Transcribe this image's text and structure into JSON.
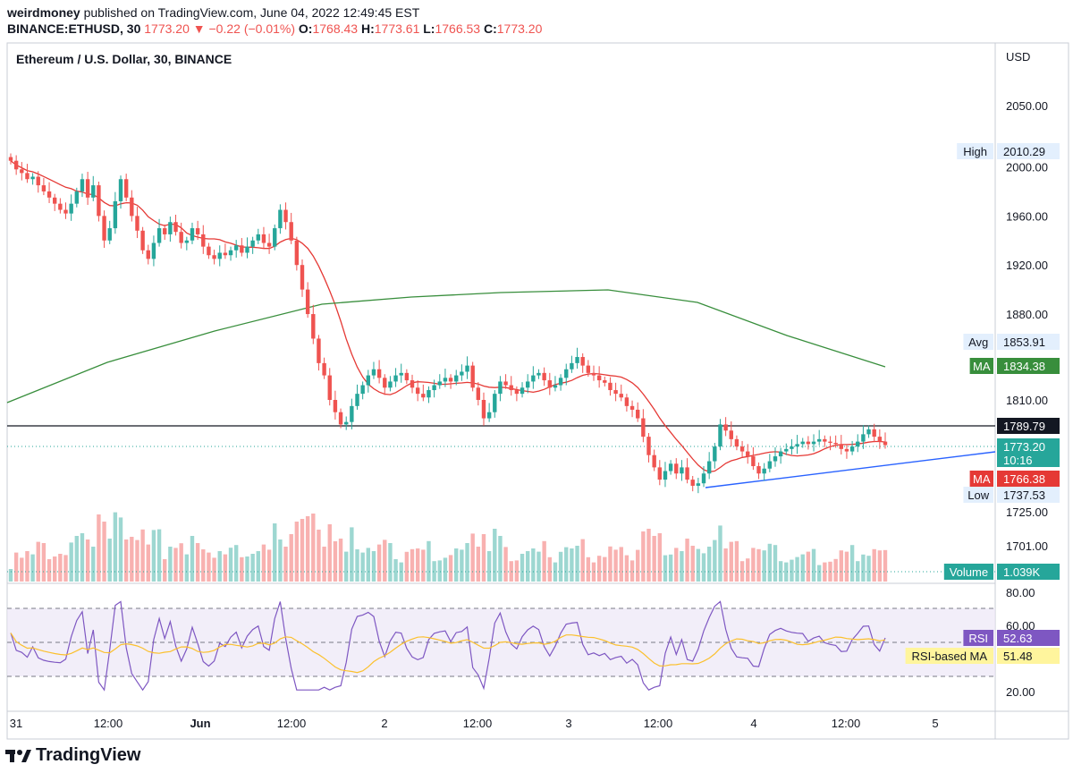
{
  "header": {
    "line1_user": "weirdmoney",
    "line1_rest": " published on TradingView.com, June 04, 2022 12:49:45 EST",
    "symbol": "BINANCE:ETHUSD, 30",
    "last": "1773.20",
    "change": "−0.22 (−0.01%)",
    "o_label": "O:",
    "o": "1768.43",
    "h_label": "H:",
    "h": "1773.61",
    "l_label": "L:",
    "l": "1766.53",
    "c_label": "C:",
    "c": "1773.20"
  },
  "chart_title": "Ethereum / U.S. Dollar, 30, BINANCE",
  "currency": "USD",
  "price_axis_ticks": [
    "2050.00",
    "2000.00",
    "1960.00",
    "1920.00",
    "1880.00",
    "1810.00",
    "1725.00",
    "1701.00"
  ],
  "rsi_axis_ticks": [
    "80.00",
    "60.00",
    "20.00"
  ],
  "time_axis_ticks": [
    "31",
    "12:00",
    "Jun",
    "12:00",
    "2",
    "12:00",
    "3",
    "12:00",
    "4",
    "12:00",
    "5"
  ],
  "labels": {
    "high": {
      "name": "High",
      "value": "2010.29"
    },
    "avg": {
      "name": "Avg",
      "value": "1853.91"
    },
    "ma200": {
      "name": "MA",
      "value": "1834.38"
    },
    "hline": {
      "value": "1789.79"
    },
    "last": {
      "value": "1773.20",
      "countdown": "10:16"
    },
    "ma50": {
      "name": "MA",
      "value": "1766.38"
    },
    "low": {
      "name": "Low",
      "value": "1737.53"
    },
    "volume": {
      "name": "Volume",
      "value": "1.039K"
    },
    "rsi": {
      "name": "RSI",
      "value": "52.63"
    },
    "rsi_ma": {
      "name": "RSI-based MA",
      "value": "51.48"
    }
  },
  "colors": {
    "up": "#26a69a",
    "down": "#ef5350",
    "ma_short": "#e53935",
    "ma_long": "#388e3c",
    "trendline": "#2962ff",
    "rsi": "#7e57c2",
    "rsi_ma": "#fbc02d",
    "high_low_bg": "#e3effd"
  },
  "branding": "TradingView",
  "chart_data": {
    "type": "candlestick",
    "title": "Ethereum / U.S. Dollar, 30, BINANCE",
    "ylabel": "USD",
    "ylim": [
      1690,
      2075
    ],
    "x_range": [
      "May 31",
      "Jun 5"
    ],
    "close": [
      2005,
      1998,
      1995,
      1990,
      1992,
      1985,
      1980,
      1975,
      1970,
      1965,
      1962,
      1970,
      1980,
      1990,
      1975,
      1985,
      1960,
      1940,
      1950,
      1972,
      1990,
      1975,
      1960,
      1948,
      1932,
      1925,
      1938,
      1950,
      1945,
      1955,
      1947,
      1938,
      1940,
      1950,
      1945,
      1935,
      1928,
      1925,
      1930,
      1928,
      1932,
      1936,
      1930,
      1935,
      1940,
      1945,
      1938,
      1935,
      1950,
      1965,
      1955,
      1940,
      1920,
      1900,
      1880,
      1860,
      1840,
      1830,
      1810,
      1800,
      1790,
      1792,
      1805,
      1815,
      1822,
      1830,
      1835,
      1828,
      1820,
      1825,
      1830,
      1832,
      1826,
      1820,
      1815,
      1812,
      1818,
      1822,
      1825,
      1828,
      1825,
      1830,
      1833,
      1838,
      1820,
      1810,
      1795,
      1800,
      1815,
      1825,
      1822,
      1818,
      1815,
      1820,
      1825,
      1830,
      1832,
      1826,
      1820,
      1822,
      1828,
      1835,
      1840,
      1845,
      1838,
      1832,
      1830,
      1826,
      1824,
      1818,
      1815,
      1812,
      1805,
      1802,
      1795,
      1780,
      1765,
      1755,
      1745,
      1752,
      1758,
      1750,
      1755,
      1745,
      1740,
      1742,
      1750,
      1760,
      1772,
      1790,
      1785,
      1778,
      1772,
      1768,
      1764,
      1756,
      1750,
      1754,
      1760,
      1764,
      1768,
      1770,
      1772,
      1774,
      1776,
      1774,
      1776,
      1778,
      1776,
      1775,
      1774,
      1770,
      1768,
      1772,
      1776,
      1782,
      1786,
      1780,
      1776,
      1773.2
    ],
    "ma_short_series": {
      "name": "MA",
      "last": 1766.38
    },
    "ma_long_series": {
      "name": "MA",
      "last": 1834.38
    },
    "high": 2010.29,
    "low": 1737.53,
    "avg": 1853.91,
    "horizontal_line": 1789.79,
    "volume_last": "1.039K",
    "rsi": {
      "levels": [
        70,
        50,
        30
      ],
      "last": 52.63,
      "ma_last": 51.48
    }
  }
}
